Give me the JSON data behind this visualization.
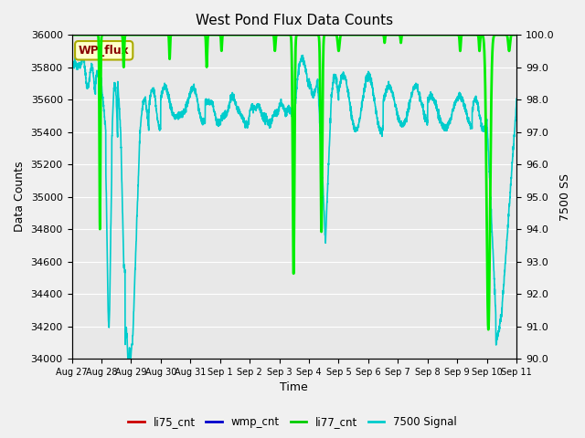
{
  "title": "West Pond Flux Data Counts",
  "xlabel": "Time",
  "ylabel_left": "Data Counts",
  "ylabel_right": "7500 SS",
  "ylim_left": [
    34000,
    36000
  ],
  "ylim_right": [
    90.0,
    100.0
  ],
  "bg_color": "#e8e8e8",
  "fig_bg_color": "#f0f0f0",
  "annotation_text": "WP_flux",
  "annotation_bg": "#ffffcc",
  "annotation_border": "#aaaa00",
  "annotation_textcolor": "#880000",
  "xtick_labels": [
    "Aug 27",
    "Aug 28",
    "Aug 29",
    "Aug 30",
    "Aug 31",
    "Sep 1",
    "Sep 2",
    "Sep 3",
    "Sep 4",
    "Sep 5",
    "Sep 6",
    "Sep 7",
    "Sep 8",
    "Sep 9",
    "Sep 10",
    "Sep 11"
  ],
  "ytick_left": [
    34000,
    34200,
    34400,
    34600,
    34800,
    35000,
    35200,
    35400,
    35600,
    35800,
    36000
  ],
  "ytick_right": [
    90.0,
    91.0,
    92.0,
    93.0,
    94.0,
    95.0,
    96.0,
    97.0,
    98.0,
    99.0,
    100.0
  ],
  "legend_labels": [
    "li75_cnt",
    "wmp_cnt",
    "li77_cnt",
    "7500 Signal"
  ],
  "legend_colors": [
    "#cc0000",
    "#0000cc",
    "#00cc00",
    "#00cccc"
  ],
  "li77_color": "#00ee00",
  "signal_color": "#00cccc",
  "li77_linewidth": 2,
  "signal_linewidth": 1.2
}
